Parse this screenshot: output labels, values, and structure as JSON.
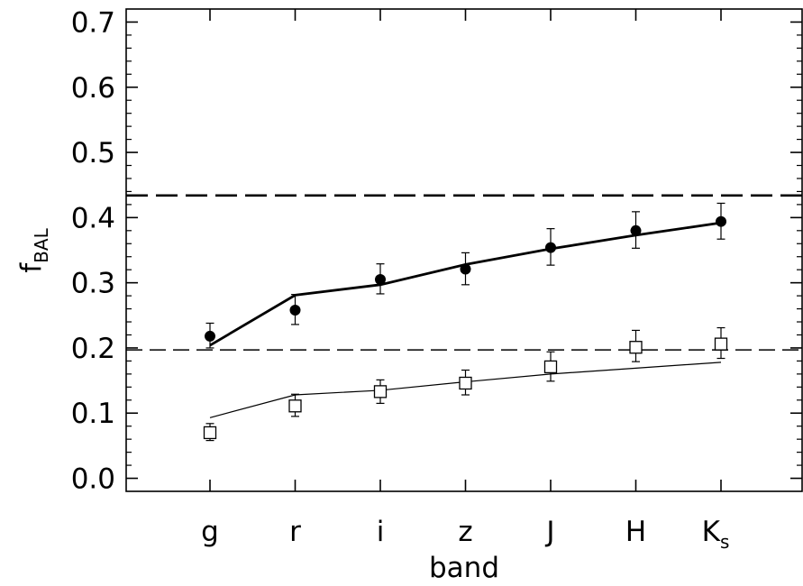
{
  "chart_data": {
    "type": "scatter",
    "xlabel": "band",
    "ylabel": {
      "main": "f",
      "sub": "BAL"
    },
    "categories": [
      {
        "main": "g",
        "sub": ""
      },
      {
        "main": "r",
        "sub": ""
      },
      {
        "main": "i",
        "sub": ""
      },
      {
        "main": "z",
        "sub": ""
      },
      {
        "main": "J",
        "sub": ""
      },
      {
        "main": "H",
        "sub": ""
      },
      {
        "main": "K",
        "sub": "s"
      }
    ],
    "ylim": [
      -0.02,
      0.72
    ],
    "yticks": [
      0.0,
      0.1,
      0.2,
      0.3,
      0.4,
      0.5,
      0.6,
      0.7
    ],
    "ytick_labels": [
      "0.0",
      "0.1",
      "0.2",
      "0.3",
      "0.4",
      "0.5",
      "0.6",
      "0.7"
    ],
    "grid": false,
    "series": [
      {
        "marker": "filled-circle",
        "values": [
          0.218,
          0.258,
          0.305,
          0.321,
          0.354,
          0.38,
          0.394
        ],
        "err_low": [
          0.018,
          0.022,
          0.022,
          0.024,
          0.027,
          0.027,
          0.027
        ],
        "err_high": [
          0.02,
          0.024,
          0.024,
          0.025,
          0.029,
          0.029,
          0.028
        ]
      },
      {
        "marker": "open-square",
        "values": [
          0.07,
          0.111,
          0.133,
          0.146,
          0.171,
          0.201,
          0.206
        ],
        "err_low": [
          0.012,
          0.016,
          0.018,
          0.018,
          0.022,
          0.022,
          0.022
        ],
        "err_high": [
          0.014,
          0.018,
          0.018,
          0.02,
          0.023,
          0.026,
          0.025
        ]
      }
    ],
    "model_lines": [
      {
        "style": "thick",
        "values": [
          0.204,
          0.281,
          0.297,
          0.328,
          0.352,
          0.373,
          0.392
        ]
      },
      {
        "style": "thin",
        "values": [
          0.093,
          0.128,
          0.135,
          0.148,
          0.16,
          0.169,
          0.178
        ]
      }
    ],
    "reference_lines": [
      {
        "style": "thick-dashed",
        "y": 0.434
      },
      {
        "style": "thin-dashed",
        "y": 0.197
      }
    ]
  }
}
